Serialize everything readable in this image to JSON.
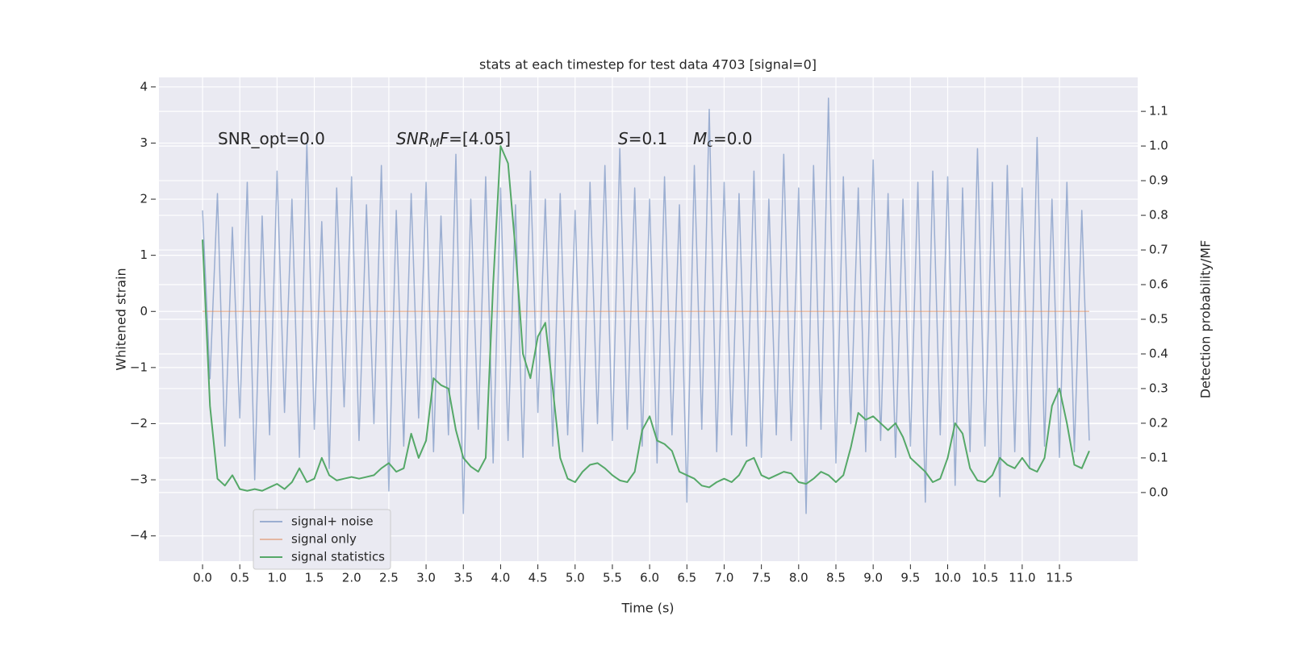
{
  "chart_data": {
    "type": "line",
    "title": "stats at each timestep for test data 4703 [signal=0]",
    "xlabel": "Time (s)",
    "ylabel": "Whitened strain",
    "y2label": "Detection probability/MF",
    "grid": true,
    "legend_loc": "lower left",
    "x": [
      0,
      0.1,
      0.2,
      0.3,
      0.4,
      0.5,
      0.6,
      0.7,
      0.8,
      0.9,
      1,
      1.1,
      1.2,
      1.3,
      1.4,
      1.5,
      1.6,
      1.7,
      1.8,
      1.9,
      2,
      2.1,
      2.2,
      2.3,
      2.4,
      2.5,
      2.6,
      2.7,
      2.8,
      2.9,
      3,
      3.1,
      3.2,
      3.3,
      3.4,
      3.5,
      3.6,
      3.7,
      3.8,
      3.9,
      4,
      4.1,
      4.2,
      4.3,
      4.4,
      4.5,
      4.6,
      4.7,
      4.8,
      4.9,
      5,
      5.1,
      5.2,
      5.3,
      5.4,
      5.5,
      5.6,
      5.7,
      5.8,
      5.9,
      6,
      6.1,
      6.2,
      6.3,
      6.4,
      6.5,
      6.6,
      6.7,
      6.8,
      6.9,
      7,
      7.1,
      7.2,
      7.3,
      7.4,
      7.5,
      7.6,
      7.7,
      7.8,
      7.9,
      8,
      8.1,
      8.2,
      8.3,
      8.4,
      8.5,
      8.6,
      8.7,
      8.8,
      8.9,
      9,
      9.1,
      9.2,
      9.3,
      9.4,
      9.5,
      9.6,
      9.7,
      9.8,
      9.9,
      10,
      10.1,
      10.2,
      10.3,
      10.4,
      10.5,
      10.6,
      10.7,
      10.8,
      10.9,
      11,
      11.1,
      11.2,
      11.3,
      11.4,
      11.5,
      11.6,
      11.7,
      11.8,
      11.9
    ],
    "series": [
      {
        "name": "signal+ noise",
        "color": "#4c72b0",
        "opacity": 0.5,
        "values": [
          1.8,
          -1.2,
          2.1,
          -2.4,
          1.5,
          -1.9,
          2.3,
          -3.0,
          1.7,
          -2.2,
          2.5,
          -1.8,
          2.0,
          -2.6,
          3.0,
          -2.1,
          1.6,
          -2.8,
          2.2,
          -1.7,
          2.4,
          -2.3,
          1.9,
          -2.0,
          2.6,
          -3.2,
          1.8,
          -2.4,
          2.1,
          -1.9,
          2.3,
          -2.5,
          1.7,
          -2.2,
          2.8,
          -3.6,
          2.0,
          -2.1,
          2.4,
          -2.7,
          2.2,
          -2.3,
          1.9,
          -2.6,
          2.5,
          -1.8,
          2.0,
          -2.4,
          2.1,
          -2.2,
          1.8,
          -2.5,
          2.3,
          -2.0,
          2.6,
          -2.3,
          2.9,
          -2.1,
          2.2,
          -2.4,
          2.0,
          -2.7,
          2.4,
          -2.2,
          1.9,
          -3.4,
          2.6,
          -2.1,
          3.6,
          -2.5,
          2.3,
          -2.2,
          2.1,
          -2.4,
          2.5,
          -2.6,
          2.0,
          -2.2,
          2.8,
          -2.3,
          2.2,
          -3.6,
          2.6,
          -2.1,
          3.8,
          -2.7,
          2.4,
          -2.0,
          2.2,
          -2.5,
          2.7,
          -2.3,
          2.1,
          -2.6,
          2.0,
          -2.4,
          2.3,
          -3.4,
          2.5,
          -2.2,
          2.4,
          -3.1,
          2.2,
          -2.5,
          2.9,
          -2.4,
          2.3,
          -3.3,
          2.6,
          -2.5,
          2.2,
          -2.8,
          3.1,
          -2.4,
          2.0,
          -2.6,
          2.3,
          -2.5,
          1.8,
          -2.3
        ]
      },
      {
        "name": "signal only",
        "color": "#dd8452",
        "opacity": 0.5,
        "x": [
          0,
          11.9
        ],
        "values": [
          0,
          0
        ]
      },
      {
        "name": "signal statistics",
        "color": "#55a868",
        "opacity": 1,
        "axis": "y2",
        "values": [
          0.73,
          0.25,
          0.04,
          0.02,
          0.05,
          0.01,
          0.005,
          0.01,
          0.005,
          0.015,
          0.025,
          0.01,
          0.03,
          0.07,
          0.03,
          0.04,
          0.1,
          0.05,
          0.035,
          0.04,
          0.045,
          0.04,
          0.045,
          0.05,
          0.07,
          0.085,
          0.06,
          0.07,
          0.17,
          0.1,
          0.15,
          0.33,
          0.31,
          0.3,
          0.18,
          0.1,
          0.075,
          0.06,
          0.1,
          0.6,
          1.0,
          0.95,
          0.7,
          0.4,
          0.33,
          0.45,
          0.49,
          0.3,
          0.1,
          0.04,
          0.03,
          0.06,
          0.08,
          0.085,
          0.07,
          0.05,
          0.035,
          0.03,
          0.06,
          0.18,
          0.22,
          0.15,
          0.14,
          0.12,
          0.06,
          0.05,
          0.04,
          0.02,
          0.015,
          0.03,
          0.04,
          0.03,
          0.05,
          0.09,
          0.1,
          0.05,
          0.04,
          0.05,
          0.06,
          0.055,
          0.03,
          0.025,
          0.04,
          0.06,
          0.05,
          0.03,
          0.05,
          0.13,
          0.23,
          0.21,
          0.22,
          0.2,
          0.18,
          0.2,
          0.16,
          0.1,
          0.08,
          0.06,
          0.03,
          0.04,
          0.1,
          0.2,
          0.17,
          0.07,
          0.035,
          0.03,
          0.05,
          0.1,
          0.08,
          0.07,
          0.1,
          0.07,
          0.06,
          0.1,
          0.25,
          0.3,
          0.2,
          0.08,
          0.07,
          0.12
        ]
      }
    ],
    "xlim": [
      -0.585,
      12.55
    ],
    "xticks": [
      {
        "value": 0,
        "label": "0.0"
      },
      0.5,
      {
        "value": 1,
        "label": "1.0"
      },
      1.5,
      {
        "value": 2,
        "label": "2.0"
      },
      2.5,
      {
        "value": 3,
        "label": "3.0"
      },
      3.5,
      {
        "value": 4,
        "label": "4.0"
      },
      4.5,
      {
        "value": 5,
        "label": "5.0"
      },
      5.5,
      {
        "value": 6,
        "label": "6.0"
      },
      6.5,
      {
        "value": 7,
        "label": "7.0"
      },
      7.5,
      {
        "value": 8,
        "label": "8.0"
      },
      8.5,
      {
        "value": 9,
        "label": "9.0"
      },
      9.5,
      {
        "value": 10,
        "label": "10.0"
      },
      10.5,
      {
        "value": 11,
        "label": "11.0"
      },
      11.5
    ],
    "ylim": [
      -4.45,
      4.17
    ],
    "yticks": [
      {
        "value": -4,
        "label": "−4"
      },
      {
        "value": -3,
        "label": "−3"
      },
      {
        "value": -2,
        "label": "−2"
      },
      {
        "value": -1,
        "label": "−1"
      },
      0,
      1,
      2,
      3,
      4
    ],
    "y2lim": [
      -0.198,
      1.198
    ],
    "y2ticks": [
      {
        "value": 0,
        "label": "0.0"
      },
      0.1,
      0.2,
      0.3,
      0.4,
      0.5,
      0.6,
      0.7,
      0.8,
      0.9,
      {
        "value": 1,
        "label": "1.0"
      },
      1.1
    ],
    "annotations": [
      {
        "parts": [
          {
            "text": "SNR_opt=0.0"
          }
        ]
      },
      {
        "parts": [
          {
            "text": "SNR",
            "style": "italic"
          },
          {
            "text": "M",
            "style": "sub"
          },
          {
            "text": "F",
            "style": "italic"
          },
          {
            "text": "=[4.05]"
          }
        ]
      },
      {
        "parts": [
          {
            "text": "S",
            "style": "italic"
          },
          {
            "text": "=0.1"
          }
        ]
      },
      {
        "parts": [
          {
            "text": "M",
            "style": "italic"
          },
          {
            "text": "c",
            "style": "sub"
          },
          {
            "text": "=0.0"
          }
        ]
      }
    ]
  }
}
